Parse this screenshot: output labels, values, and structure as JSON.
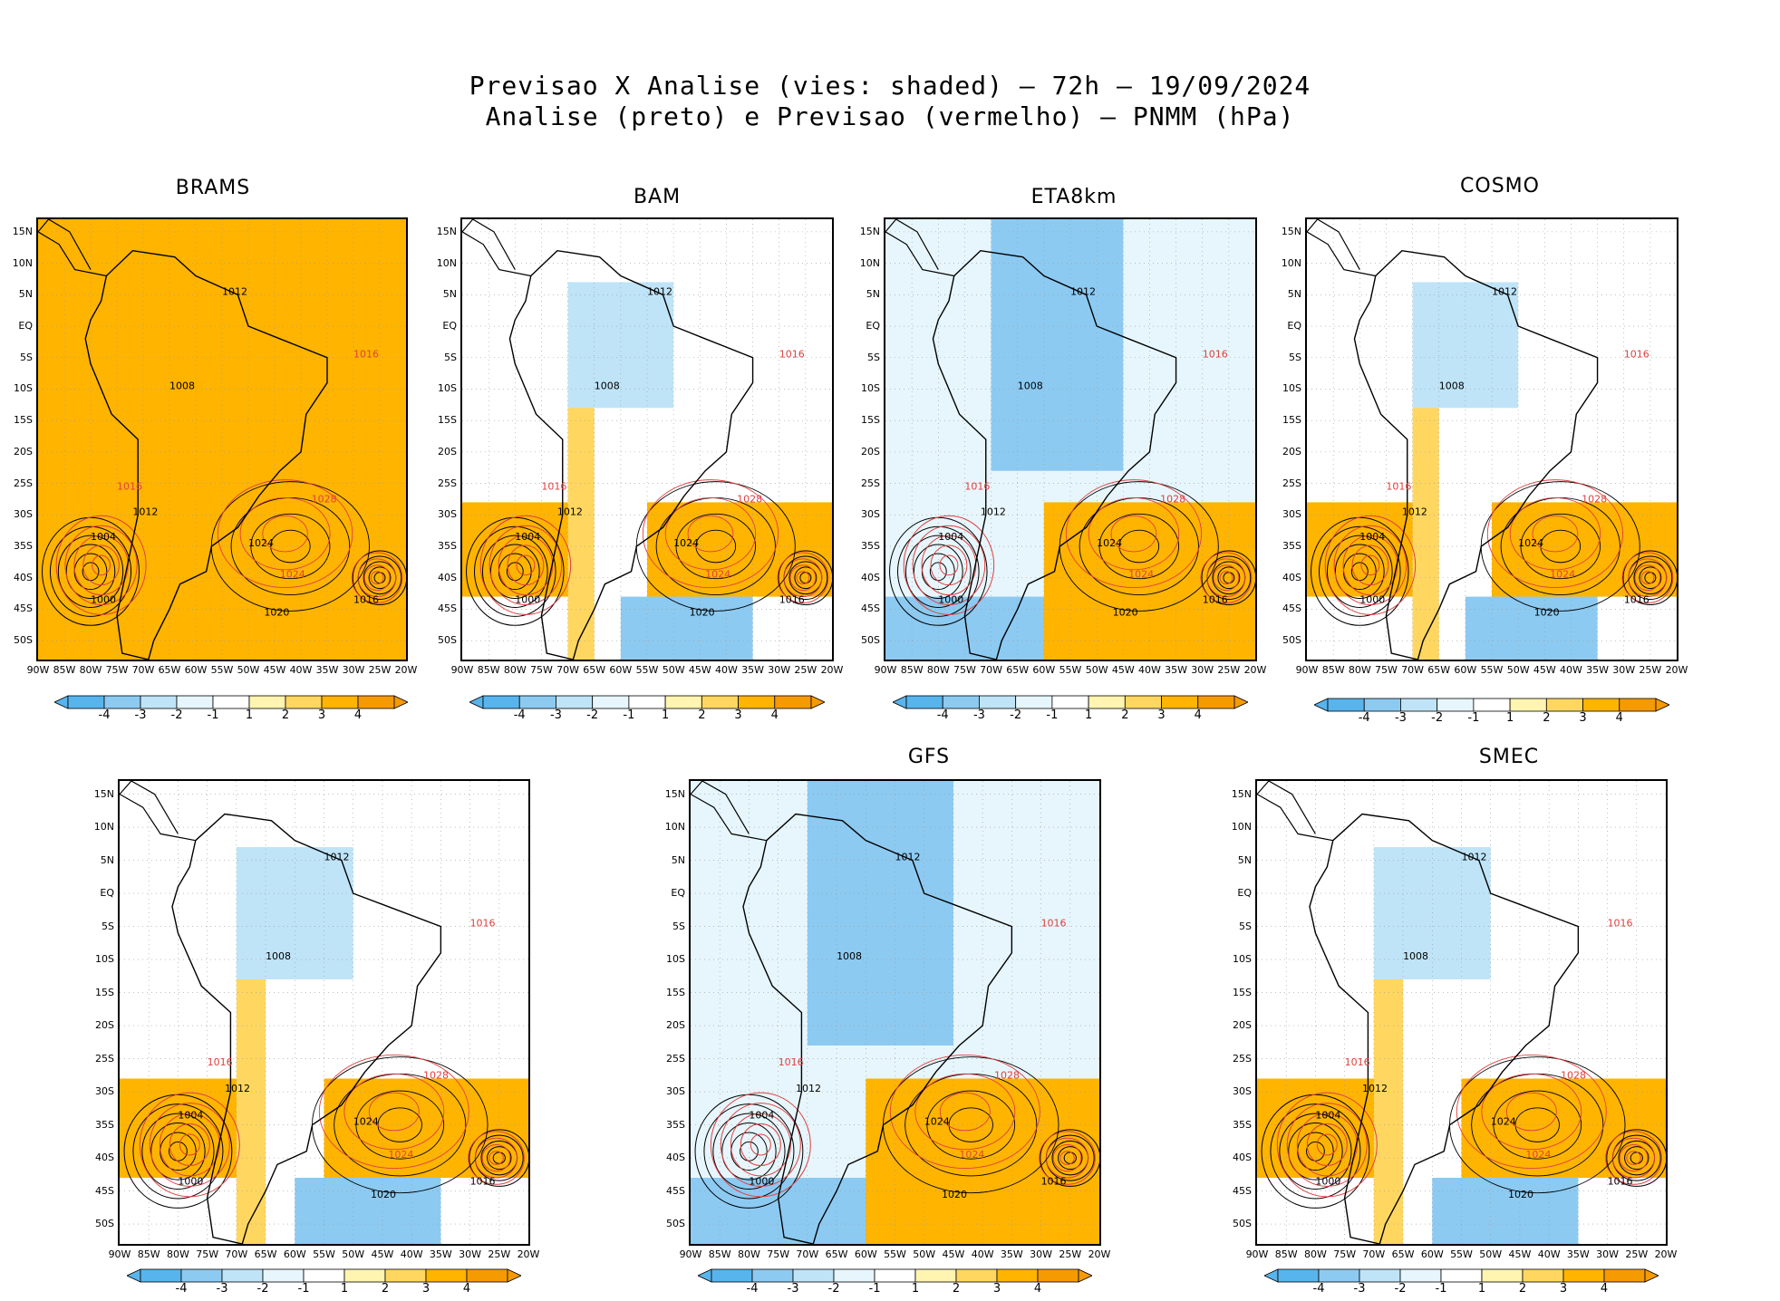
{
  "title": {
    "line1": "Previsao X Analise (vies: shaded) – 72h – 19/09/2024",
    "line2": "Analise (preto) e Previsao (vermelho) – PNMM (hPa)"
  },
  "axes": {
    "lat_labels": [
      "15N",
      "10N",
      "5N",
      "EQ",
      "5S",
      "10S",
      "15S",
      "20S",
      "25S",
      "30S",
      "35S",
      "40S",
      "45S",
      "50S"
    ],
    "lon_labels": [
      "90W",
      "85W",
      "80W",
      "75W",
      "70W",
      "65W",
      "60W",
      "55W",
      "50W",
      "45W",
      "40W",
      "35W",
      "30W",
      "25W",
      "20W"
    ]
  },
  "colorbar": {
    "ticks": [
      "-4",
      "-3",
      "-2",
      "-1",
      "1",
      "2",
      "3",
      "4"
    ],
    "colors": [
      "#58b4ec",
      "#8ccaf2",
      "#bfe4f8",
      "#e6f6fc",
      "#ffffff",
      "#fff4b0",
      "#ffd760",
      "#ffb400",
      "#f59a00"
    ]
  },
  "panels": [
    {
      "name": "BRAMS",
      "label": "BRAMS",
      "bias": "warm_strong"
    },
    {
      "name": "BAM",
      "label": "BAM",
      "bias": "mixed"
    },
    {
      "name": "ETA8km",
      "label": "ETA8km",
      "bias": "cold"
    },
    {
      "name": "COSMO",
      "label": "COSMO",
      "bias": "mixed"
    },
    {
      "name": "unlabeled",
      "label": "",
      "bias": "mixed"
    },
    {
      "name": "GFS",
      "label": "GFS",
      "bias": "cold"
    },
    {
      "name": "SMEC",
      "label": "SMEC",
      "bias": "mixed"
    }
  ],
  "isobars_analysis": [
    "1000",
    "1004",
    "1008",
    "1012",
    "1016",
    "1020",
    "1024",
    "1028"
  ],
  "isobars_forecast": [
    "1004",
    "1008",
    "1012",
    "1016",
    "1020",
    "1024",
    "1028"
  ]
}
